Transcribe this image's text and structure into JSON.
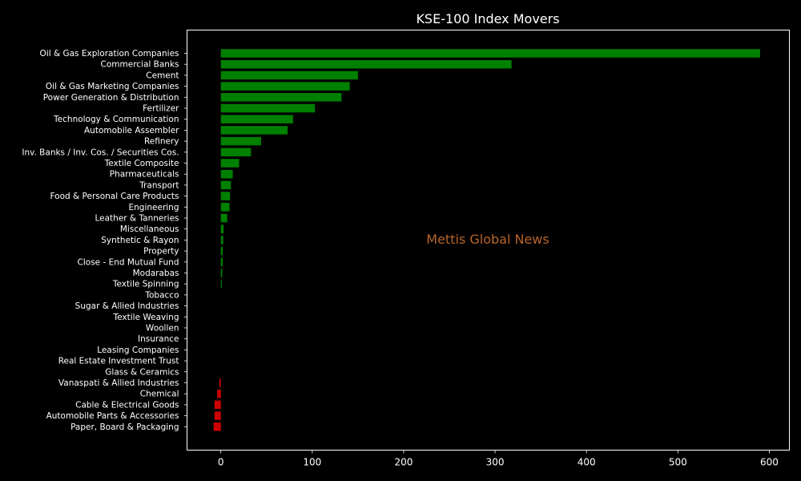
{
  "chart_data": {
    "type": "bar",
    "orientation": "horizontal",
    "title": "KSE-100 Index Movers",
    "xlabel": "",
    "ylabel": "",
    "xlim": [
      -37,
      622
    ],
    "xticks": [
      0,
      100,
      200,
      300,
      400,
      500,
      600
    ],
    "grid": false,
    "watermark": "Mettis Global News",
    "colors": {
      "background": "#000000",
      "positive": "#008000",
      "negative": "#cc0000",
      "text": "#ffffff",
      "watermark": "#b8642a"
    },
    "categories": [
      "Oil & Gas Exploration Companies",
      "Commercial Banks",
      "Cement",
      "Oil & Gas Marketing Companies",
      "Power Generation & Distribution",
      "Fertilizer",
      "Technology & Communication",
      "Automobile Assembler",
      "Refinery",
      "Inv. Banks / Inv. Cos. / Securities Cos.",
      "Textile Composite",
      "Pharmaceuticals",
      "Transport",
      "Food & Personal Care Products",
      "Engineering",
      "Leather & Tanneries",
      "Miscellaneous",
      "Synthetic & Rayon",
      "Property",
      "Close - End Mutual Fund",
      "Modarabas",
      "Textile Spinning",
      "Tobacco",
      "Sugar & Allied Industries",
      "Textile Weaving",
      "Woollen",
      "Insurance",
      "Leasing Companies",
      "Real Estate Investment Trust",
      "Glass & Ceramics",
      "Vanaspati & Allied Industries",
      "Chemical",
      "Cable & Electrical Goods",
      "Automobile Parts & Accessories",
      "Paper, Board & Packaging"
    ],
    "values": [
      590,
      318,
      150,
      141,
      132,
      103,
      79,
      73,
      44,
      33,
      20,
      13,
      11,
      10,
      9.5,
      7,
      3,
      2.5,
      2,
      2,
      1.5,
      1,
      0,
      0,
      0,
      0,
      0,
      0,
      0,
      0,
      -1.5,
      -4,
      -7,
      -7,
      -8
    ]
  }
}
